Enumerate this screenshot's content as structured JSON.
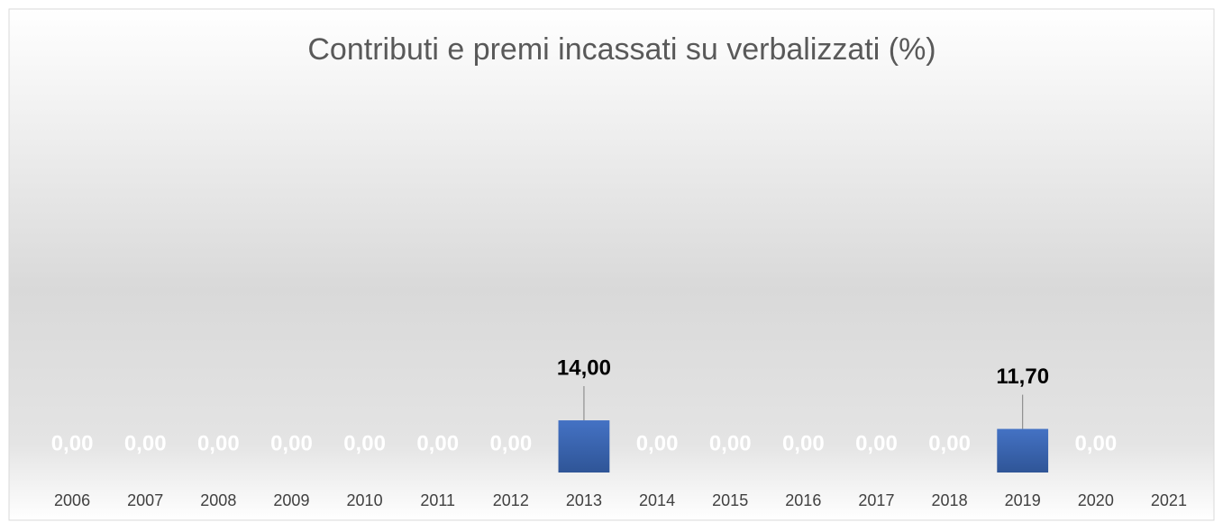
{
  "chart_data": {
    "type": "bar",
    "title": "Contributi e premi incassati su verbalizzati (%)",
    "categories": [
      "2006",
      "2007",
      "2008",
      "2009",
      "2010",
      "2011",
      "2012",
      "2013",
      "2014",
      "2015",
      "2016",
      "2017",
      "2018",
      "2019",
      "2020",
      "2021"
    ],
    "values": [
      0,
      0,
      0,
      0,
      0,
      0,
      0,
      14,
      0,
      0,
      0,
      0,
      0,
      11.7,
      0,
      null
    ],
    "value_labels": [
      "0,00",
      "0,00",
      "0,00",
      "0,00",
      "0,00",
      "0,00",
      "0,00",
      "14,00",
      "0,00",
      "0,00",
      "0,00",
      "0,00",
      "0,00",
      "11,70",
      "0,00",
      null
    ],
    "color": "#4472c4",
    "ylim": [
      0,
      100
    ]
  }
}
